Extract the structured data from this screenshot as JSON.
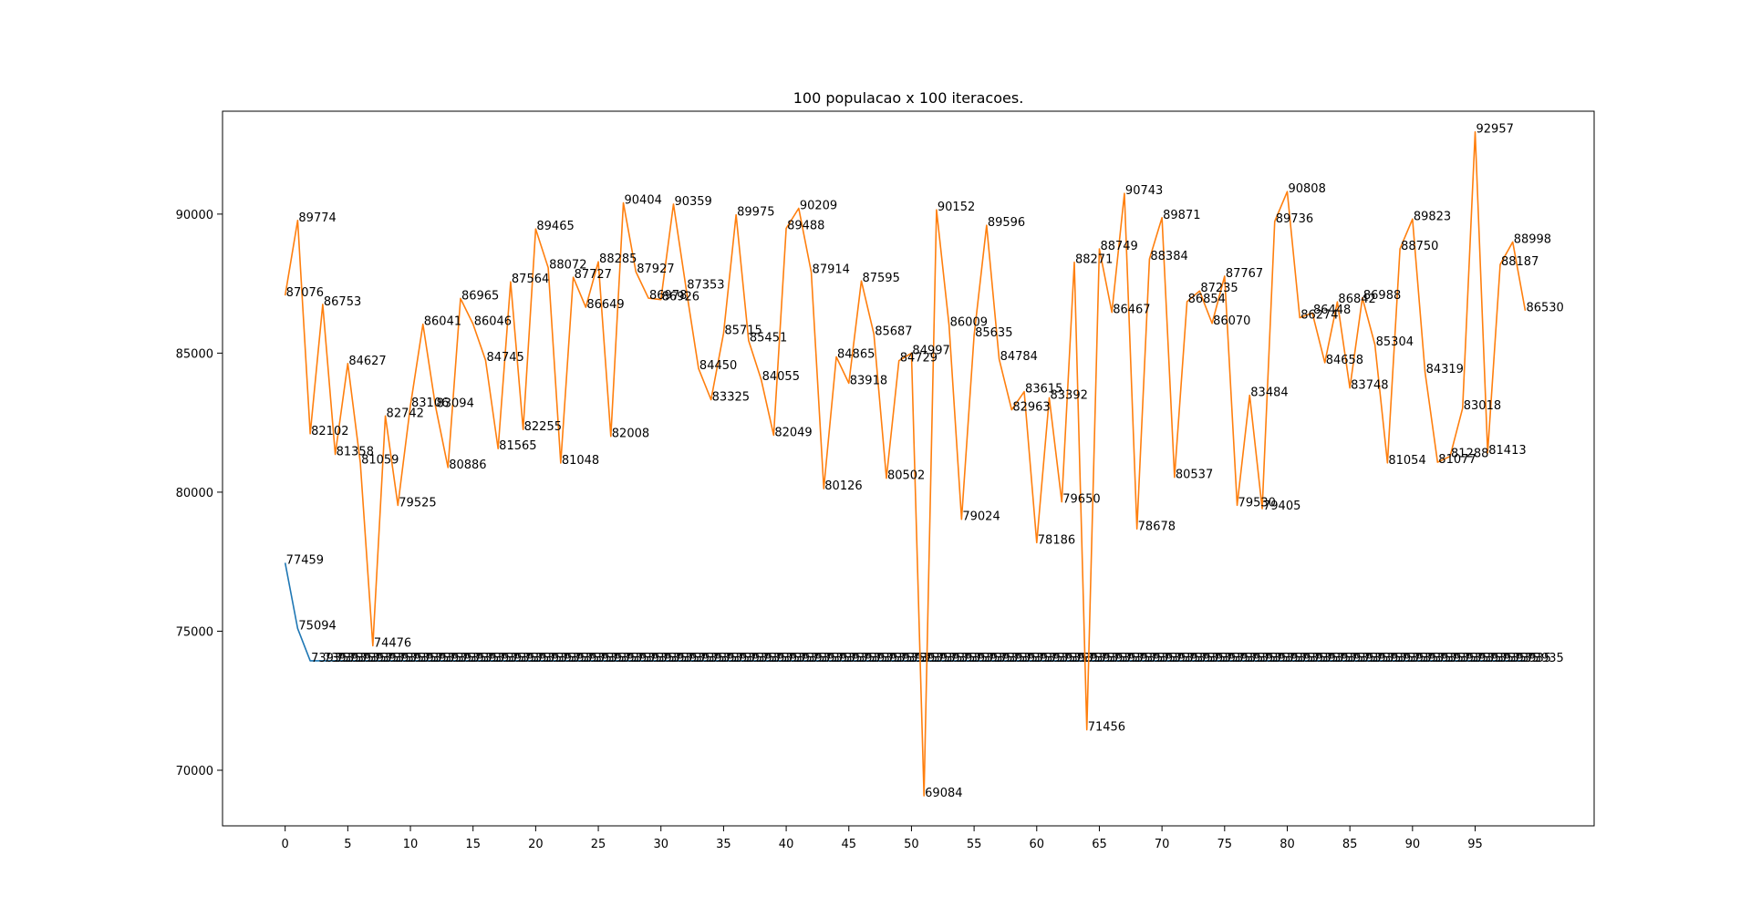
{
  "chart_data": {
    "type": "line",
    "title": "100 populacao x 100 iteracoes.",
    "xlabel": "",
    "ylabel": "",
    "xlim": [
      -5,
      104.5
    ],
    "ylim": [
      68000,
      93700
    ],
    "grid": false,
    "legend": "none",
    "x_ticks": [
      0,
      5,
      10,
      15,
      20,
      25,
      30,
      35,
      40,
      45,
      50,
      55,
      60,
      65,
      70,
      75,
      80,
      85,
      90,
      95
    ],
    "y_ticks": [
      70000,
      75000,
      80000,
      85000,
      90000
    ],
    "series": [
      {
        "color": "#1f77b4",
        "start_x": 0,
        "values": [
          77459,
          75094,
          73935,
          73935,
          73935,
          73935,
          73935,
          73935,
          73935,
          73935,
          73935,
          73935,
          73935,
          73935,
          73935,
          73935,
          73935,
          73935,
          73935,
          73935,
          73935,
          73935,
          73935,
          73935,
          73935,
          73935,
          73935,
          73935,
          73935,
          73935,
          73935,
          73935,
          73935,
          73935,
          73935,
          73935,
          73935,
          73935,
          73935,
          73935,
          73935,
          73935,
          73935,
          73935,
          73935,
          73935,
          73935,
          73935,
          73935,
          73935,
          73935,
          73935,
          73935,
          73935,
          73935,
          73935,
          73935,
          73935,
          73935,
          73935,
          73935,
          73935,
          73935,
          73935,
          73935,
          73935,
          73935,
          73935,
          73935,
          73935,
          73935,
          73935,
          73935,
          73935,
          73935,
          73935,
          73935,
          73935,
          73935,
          73935,
          73935,
          73935,
          73935,
          73935,
          73935,
          73935,
          73935,
          73935,
          73935,
          73935,
          73935,
          73935,
          73935,
          73935,
          73935,
          73935,
          73935,
          73935,
          73935,
          73935
        ]
      },
      {
        "color": "#ff7f0e",
        "start_x": 0,
        "values": [
          87076,
          89774,
          82102,
          86753,
          81358,
          84627,
          81059,
          74476,
          82742,
          79525,
          83106,
          86041,
          83094,
          80886,
          86965,
          86046,
          84745,
          81565,
          87564,
          82255,
          89465,
          88072,
          81048,
          87727,
          86649,
          88285,
          82008,
          90404,
          87927,
          86978,
          86926,
          90359,
          87353,
          84450,
          83325,
          85715,
          89975,
          85451,
          84055,
          82049,
          89488,
          90209,
          87914,
          80126,
          84865,
          83918,
          87595,
          85687,
          80502,
          84729,
          84997,
          69084,
          90152,
          86009,
          79024,
          85635,
          89596,
          84784,
          82963,
          83615,
          78186,
          83392,
          79650,
          88271,
          71456,
          88749,
          86467,
          90743,
          78678,
          88384,
          89871,
          80537,
          86854,
          87235,
          86070,
          87767,
          79530,
          83484,
          79405,
          89736,
          90808,
          86274,
          86448,
          84658,
          86842,
          83748,
          86988,
          85304,
          81054,
          88750,
          89823,
          84319,
          81077,
          81288,
          83018,
          92957,
          81413,
          88187,
          88998,
          86530
        ]
      }
    ]
  }
}
